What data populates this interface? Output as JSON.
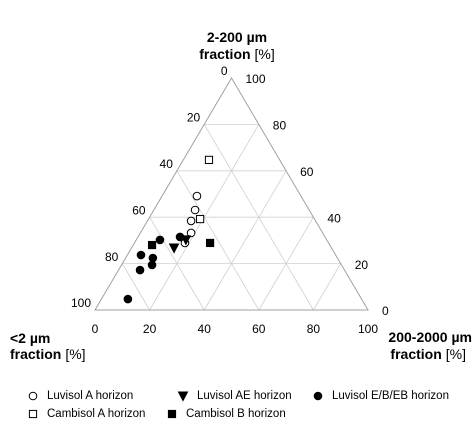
{
  "chart_data": {
    "type": "ternary",
    "axes": {
      "silt": {
        "title": "2-200 µm",
        "title2": "fraction",
        "unit": "[%]",
        "ticks": [
          0,
          20,
          40,
          60,
          80,
          100
        ]
      },
      "clay": {
        "title": "<2 µm",
        "title2": "fraction",
        "unit": "[%]",
        "ticks": [
          0,
          20,
          40,
          60,
          80,
          100
        ]
      },
      "sand": {
        "title": "200-2000 µm",
        "title2": "fraction",
        "unit": "[%]",
        "ticks": [
          0,
          20,
          40,
          60,
          80,
          100
        ]
      }
    },
    "grid": true,
    "series": [
      {
        "name": "Luvisol A horizon",
        "marker": "circle",
        "filled": false,
        "sand": [
          12.8,
          15.1,
          16.0,
          18.6,
          18.5
        ],
        "silt": [
          49.1,
          43.1,
          38.4,
          33.2,
          28.9
        ],
        "clay": [
          38.1,
          41.8,
          45.6,
          48.2,
          52.6
        ]
      },
      {
        "name": "Luvisol AE horizon",
        "marker": "triangle-down",
        "filled": true,
        "sand": [
          15.6,
          18.2
        ],
        "silt": [
          26.7,
          30.2
        ],
        "clay": [
          57.7,
          51.6
        ]
      },
      {
        "name": "Luvisol E/B/EB horizon",
        "marker": "circle",
        "filled": true,
        "sand": [
          15.4,
          8.7,
          5.0,
          10.0,
          11.2,
          7.9,
          9.7
        ],
        "silt": [
          31.5,
          30.2,
          23.7,
          22.4,
          19.4,
          17.2,
          4.7
        ],
        "clay": [
          53.1,
          61.1,
          71.3,
          67.6,
          69.4,
          74.9,
          85.6
        ]
      },
      {
        "name": "Cambisol A horizon",
        "marker": "square",
        "filled": false,
        "sand": [
          9.4,
          18.9
        ],
        "silt": [
          64.7,
          39.2
        ],
        "clay": [
          25.9,
          41.9
        ]
      },
      {
        "name": "Cambisol B horizon",
        "marker": "square",
        "filled": true,
        "sand": [
          6.9,
          27.7
        ],
        "silt": [
          28.0,
          28.9
        ],
        "clay": [
          65.1,
          43.4
        ]
      }
    ]
  }
}
